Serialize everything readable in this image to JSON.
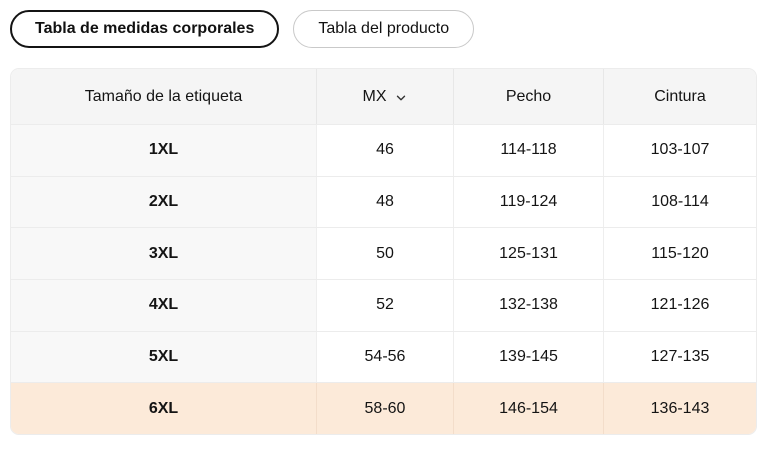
{
  "tabs": [
    {
      "label": "Tabla de medidas corporales",
      "selected": true
    },
    {
      "label": "Tabla del producto",
      "selected": false
    }
  ],
  "table": {
    "columns": [
      "Tamaño de la etiqueta",
      "MX",
      "Pecho",
      "Cintura"
    ],
    "unit_selector": {
      "value": "MX",
      "icon": "chevron-down-icon"
    },
    "rows": [
      {
        "size": "1XL",
        "mx": "46",
        "pecho": "114-118",
        "cintura": "103-107",
        "highlighted": false
      },
      {
        "size": "2XL",
        "mx": "48",
        "pecho": "119-124",
        "cintura": "108-114",
        "highlighted": false
      },
      {
        "size": "3XL",
        "mx": "50",
        "pecho": "125-131",
        "cintura": "115-120",
        "highlighted": false
      },
      {
        "size": "4XL",
        "mx": "52",
        "pecho": "132-138",
        "cintura": "121-126",
        "highlighted": false
      },
      {
        "size": "5XL",
        "mx": "54-56",
        "pecho": "139-145",
        "cintura": "127-135",
        "highlighted": false
      },
      {
        "size": "6XL",
        "mx": "58-60",
        "pecho": "146-154",
        "cintura": "136-143",
        "highlighted": true
      }
    ]
  },
  "colors": {
    "highlight_row": "#fcead9",
    "header_bg": "#f5f5f5",
    "first_column_bg": "#f8f8f8",
    "selected_tab_border": "#141414",
    "unselected_tab_border": "#c9c9c9",
    "text": "#141414"
  }
}
